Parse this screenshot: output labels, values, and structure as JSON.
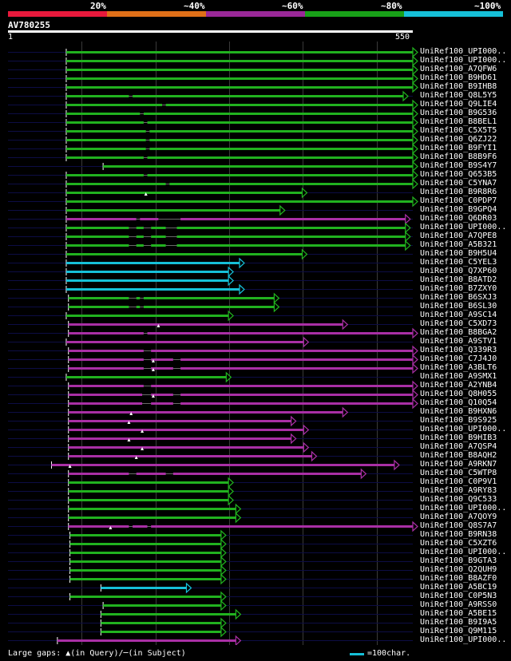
{
  "legend": {
    "segments": [
      {
        "color": "#e8193c"
      },
      {
        "color": "#e07018"
      },
      {
        "color": "#9a2898"
      },
      {
        "color": "#18a018"
      },
      {
        "color": "#16c0d8"
      }
    ],
    "labels": [
      "20%",
      "~40%",
      "~60%",
      "~80%",
      "~100%"
    ]
  },
  "query": {
    "id": "AV780255",
    "start_label": "1",
    "end_label": "550",
    "length": 550
  },
  "colors": {
    "green": "#21b21f",
    "purple": "#a92fa5",
    "cyan": "#16c0d8",
    "track": "#0d0d45",
    "grid": "#3a3a3a"
  },
  "hits": [
    {
      "label": "UniRef100_UPI000..",
      "start": 80,
      "end": 550,
      "color": "green",
      "gaps": []
    },
    {
      "label": "UniRef100_UPI000..",
      "start": 80,
      "end": 550,
      "color": "green",
      "gaps": []
    },
    {
      "label": "UniRef100_A7QFW6",
      "start": 80,
      "end": 550,
      "color": "green",
      "gaps": []
    },
    {
      "label": "UniRef100_B9HD61",
      "start": 80,
      "end": 550,
      "color": "green",
      "gaps": []
    },
    {
      "label": "UniRef100_B9IHB8",
      "start": 80,
      "end": 550,
      "color": "green",
      "gaps": []
    },
    {
      "label": "UniRef100_Q8L5Y5",
      "start": 80,
      "end": 537,
      "color": "green",
      "gaps": [
        [
          165,
          170
        ]
      ]
    },
    {
      "label": "UniRef100_Q9LIE4",
      "start": 80,
      "end": 550,
      "color": "green",
      "gaps": [
        [
          210,
          215
        ]
      ]
    },
    {
      "label": "UniRef100_B9G536",
      "start": 80,
      "end": 550,
      "color": "green",
      "gaps": [
        [
          180,
          185
        ]
      ]
    },
    {
      "label": "UniRef100_B8BEL1",
      "start": 80,
      "end": 550,
      "color": "green",
      "gaps": [
        [
          185,
          190
        ]
      ]
    },
    {
      "label": "UniRef100_C5X5T5",
      "start": 80,
      "end": 550,
      "color": "green",
      "gaps": [
        [
          188,
          193
        ]
      ]
    },
    {
      "label": "UniRef100_Q6ZJ22",
      "start": 80,
      "end": 550,
      "color": "green",
      "gaps": [
        [
          188,
          193
        ]
      ]
    },
    {
      "label": "UniRef100_B9FYI1",
      "start": 80,
      "end": 550,
      "color": "green",
      "gaps": [
        [
          188,
          193
        ]
      ]
    },
    {
      "label": "UniRef100_B8B9F6",
      "start": 80,
      "end": 550,
      "color": "green",
      "gaps": [
        [
          185,
          190
        ]
      ]
    },
    {
      "label": "UniRef100_B9S4Y7",
      "start": 130,
      "end": 550,
      "color": "green",
      "gaps": []
    },
    {
      "label": "UniRef100_Q653B5",
      "start": 80,
      "end": 550,
      "color": "green",
      "gaps": [
        [
          185,
          190
        ]
      ]
    },
    {
      "label": "UniRef100_C5YNA7",
      "start": 80,
      "end": 550,
      "color": "green",
      "gaps": [
        [
          215,
          220
        ]
      ]
    },
    {
      "label": "UniRef100_B9R8R6",
      "start": 80,
      "end": 400,
      "color": "green",
      "gaps": [],
      "triangle": 188
    },
    {
      "label": "UniRef100_C0PDP7",
      "start": 80,
      "end": 550,
      "color": "green",
      "gaps": []
    },
    {
      "label": "UniRef100_B9GPQ4",
      "start": 80,
      "end": 370,
      "color": "green",
      "gaps": []
    },
    {
      "label": "UniRef100_Q6DR03",
      "start": 80,
      "end": 540,
      "color": "purple",
      "gaps": [
        [
          175,
          180
        ],
        [
          205,
          235
        ]
      ]
    },
    {
      "label": "UniRef100_UPI000..",
      "start": 80,
      "end": 540,
      "color": "green",
      "gaps": [
        [
          165,
          175
        ],
        [
          185,
          195
        ],
        [
          215,
          230
        ]
      ]
    },
    {
      "label": "UniRef100_A7QPE8",
      "start": 80,
      "end": 540,
      "color": "green",
      "gaps": [
        [
          165,
          175
        ],
        [
          185,
          195
        ],
        [
          215,
          230
        ]
      ]
    },
    {
      "label": "UniRef100_A5B321",
      "start": 80,
      "end": 540,
      "color": "green",
      "gaps": [
        [
          165,
          175
        ],
        [
          185,
          195
        ],
        [
          215,
          230
        ]
      ]
    },
    {
      "label": "UniRef100_B9H5U4",
      "start": 80,
      "end": 400,
      "color": "green",
      "gaps": []
    },
    {
      "label": "UniRef100_C5YEL3",
      "start": 80,
      "end": 315,
      "color": "cyan",
      "gaps": []
    },
    {
      "label": "UniRef100_Q7XP60",
      "start": 80,
      "end": 300,
      "color": "cyan",
      "gaps": []
    },
    {
      "label": "UniRef100_B8ATD2",
      "start": 80,
      "end": 300,
      "color": "cyan",
      "gaps": []
    },
    {
      "label": "UniRef100_B7ZXY0",
      "start": 80,
      "end": 315,
      "color": "cyan",
      "gaps": []
    },
    {
      "label": "UniRef100_B6SXJ3",
      "start": 83,
      "end": 362,
      "color": "green",
      "gaps": [
        [
          165,
          175
        ],
        [
          180,
          185
        ]
      ]
    },
    {
      "label": "UniRef100_B6SL30",
      "start": 83,
      "end": 362,
      "color": "green",
      "gaps": [
        [
          165,
          175
        ],
        [
          180,
          185
        ]
      ]
    },
    {
      "label": "UniRef100_A9SC14",
      "start": 80,
      "end": 300,
      "color": "green",
      "gaps": []
    },
    {
      "label": "UniRef100_C5XD73",
      "start": 83,
      "end": 455,
      "color": "purple",
      "gaps": [],
      "triangle": 205
    },
    {
      "label": "UniRef100_B8BGA2",
      "start": 83,
      "end": 550,
      "color": "purple",
      "gaps": [
        [
          185,
          190
        ]
      ]
    },
    {
      "label": "UniRef100_A9STV1",
      "start": 80,
      "end": 402,
      "color": "purple",
      "gaps": []
    },
    {
      "label": "UniRef100_Q339R3",
      "start": 83,
      "end": 550,
      "color": "purple",
      "gaps": [
        [
          185,
          195
        ]
      ]
    },
    {
      "label": "UniRef100_C7J4J0",
      "start": 83,
      "end": 550,
      "color": "purple",
      "gaps": [
        [
          185,
          195
        ],
        [
          225,
          235
        ]
      ],
      "triangle": 198
    },
    {
      "label": "UniRef100_A3BLT6",
      "start": 83,
      "end": 550,
      "color": "purple",
      "gaps": [
        [
          185,
          195
        ],
        [
          225,
          235
        ]
      ],
      "triangle": 198
    },
    {
      "label": "UniRef100_A9SMX1",
      "start": 80,
      "end": 297,
      "color": "green",
      "gaps": []
    },
    {
      "label": "UniRef100_A2YNB4",
      "start": 83,
      "end": 550,
      "color": "purple",
      "gaps": [
        [
          185,
          195
        ]
      ]
    },
    {
      "label": "UniRef100_Q8H055",
      "start": 83,
      "end": 550,
      "color": "purple",
      "gaps": [
        [
          183,
          195
        ],
        [
          225,
          235
        ]
      ],
      "triangle": 198
    },
    {
      "label": "UniRef100_Q10Q54",
      "start": 83,
      "end": 550,
      "color": "purple",
      "gaps": [
        [
          183,
          195
        ],
        [
          225,
          235
        ]
      ]
    },
    {
      "label": "UniRef100_B9HXN6",
      "start": 83,
      "end": 455,
      "color": "purple",
      "gaps": [],
      "triangle": 168
    },
    {
      "label": "UniRef100_B9S925",
      "start": 83,
      "end": 385,
      "color": "purple",
      "gaps": [],
      "triangle": 165
    },
    {
      "label": "UniRef100_UPI000..",
      "start": 83,
      "end": 402,
      "color": "purple",
      "gaps": [],
      "triangle": 183
    },
    {
      "label": "UniRef100_B9HIB3",
      "start": 83,
      "end": 385,
      "color": "purple",
      "gaps": [],
      "triangle": 165
    },
    {
      "label": "UniRef100_A7QSP4",
      "start": 83,
      "end": 402,
      "color": "purple",
      "gaps": [],
      "triangle": 183
    },
    {
      "label": "UniRef100_B8AQH2",
      "start": 83,
      "end": 413,
      "color": "purple",
      "gaps": [],
      "triangle": 175
    },
    {
      "label": "UniRef100_A9RKN7",
      "start": 60,
      "end": 525,
      "color": "purple",
      "gaps": [],
      "triangle": 85
    },
    {
      "label": "UniRef100_C5WTP8",
      "start": 83,
      "end": 480,
      "color": "purple",
      "gaps": [
        [
          165,
          175
        ],
        [
          215,
          225
        ]
      ]
    },
    {
      "label": "UniRef100_C0P9V1",
      "start": 83,
      "end": 300,
      "color": "green",
      "gaps": []
    },
    {
      "label": "UniRef100_A9RY83",
      "start": 83,
      "end": 300,
      "color": "green",
      "gaps": []
    },
    {
      "label": "UniRef100_Q9C533",
      "start": 83,
      "end": 300,
      "color": "green",
      "gaps": []
    },
    {
      "label": "UniRef100_UPI000..",
      "start": 83,
      "end": 310,
      "color": "green",
      "gaps": []
    },
    {
      "label": "UniRef100_A7QOY9",
      "start": 83,
      "end": 310,
      "color": "green",
      "gaps": []
    },
    {
      "label": "UniRef100_Q8S7A7",
      "start": 83,
      "end": 550,
      "color": "purple",
      "gaps": [
        [
          165,
          170
        ],
        [
          190,
          195
        ]
      ],
      "triangle": 140
    },
    {
      "label": "UniRef100_B9RN38",
      "start": 85,
      "end": 290,
      "color": "green",
      "gaps": []
    },
    {
      "label": "UniRef100_C5XZT6",
      "start": 85,
      "end": 290,
      "color": "green",
      "gaps": []
    },
    {
      "label": "UniRef100_UPI000..",
      "start": 85,
      "end": 290,
      "color": "green",
      "gaps": []
    },
    {
      "label": "UniRef100_B9GTA3",
      "start": 85,
      "end": 290,
      "color": "green",
      "gaps": []
    },
    {
      "label": "UniRef100_Q2QUH9",
      "start": 85,
      "end": 290,
      "color": "green",
      "gaps": []
    },
    {
      "label": "UniRef100_B8AZF0",
      "start": 85,
      "end": 290,
      "color": "green",
      "gaps": []
    },
    {
      "label": "UniRef100_A5BC19",
      "start": 127,
      "end": 243,
      "color": "cyan",
      "gaps": []
    },
    {
      "label": "UniRef100_C0P5N3",
      "start": 85,
      "end": 290,
      "color": "green",
      "gaps": []
    },
    {
      "label": "UniRef100_A9RSS0",
      "start": 130,
      "end": 290,
      "color": "green",
      "gaps": []
    },
    {
      "label": "UniRef100_A5BE15",
      "start": 127,
      "end": 310,
      "color": "green",
      "gaps": []
    },
    {
      "label": "UniRef100_B9I9A5",
      "start": 127,
      "end": 290,
      "color": "green",
      "gaps": []
    },
    {
      "label": "UniRef100_Q9M115",
      "start": 127,
      "end": 290,
      "color": "green",
      "gaps": []
    },
    {
      "label": "UniRef100_UPI000..",
      "start": 68,
      "end": 310,
      "color": "purple",
      "gaps": []
    }
  ],
  "footer": {
    "note": "Large gaps: ▲(in Query)/─(in Subject)",
    "scale_label": "=100char."
  }
}
